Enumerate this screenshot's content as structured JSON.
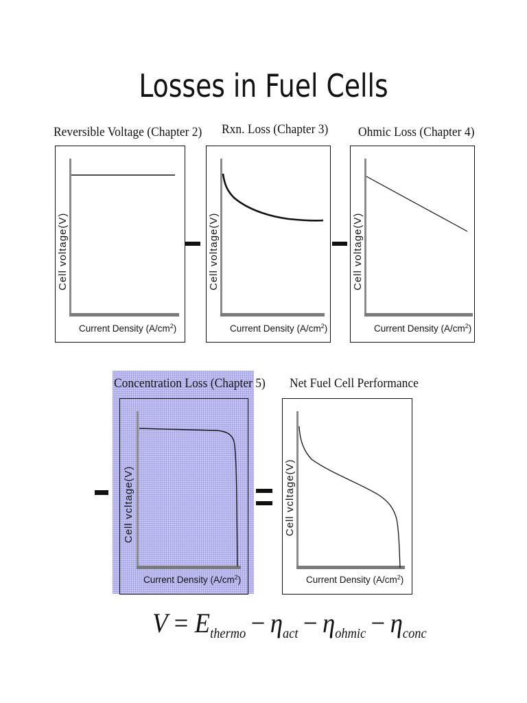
{
  "title": "Losses in Fuel Cells",
  "axis": {
    "y_label": "Cell voltage(V)",
    "y_label_alt": "Cell vcltage(V)",
    "x_label": "Current Density (A/cm",
    "x_label_sup": "2",
    "x_label_end": ")"
  },
  "panels": {
    "reversible": {
      "title": "Reversible Voltage (Chapter 2)"
    },
    "rxn": {
      "title": "Rxn. Loss (Chapter 3)"
    },
    "ohmic": {
      "title": "Ohmic Loss (Chapter 4)"
    },
    "concentration": {
      "title": "Concentration Loss (Chapter 5)"
    },
    "net": {
      "title": "Net Fuel Cell Performance"
    }
  },
  "equation": {
    "V": "V",
    "eq": "=",
    "E": "E",
    "E_sub": "thermo",
    "minus": "−",
    "eta": "η",
    "act": "act",
    "ohmic": "ohmic",
    "conc": "conc"
  }
}
